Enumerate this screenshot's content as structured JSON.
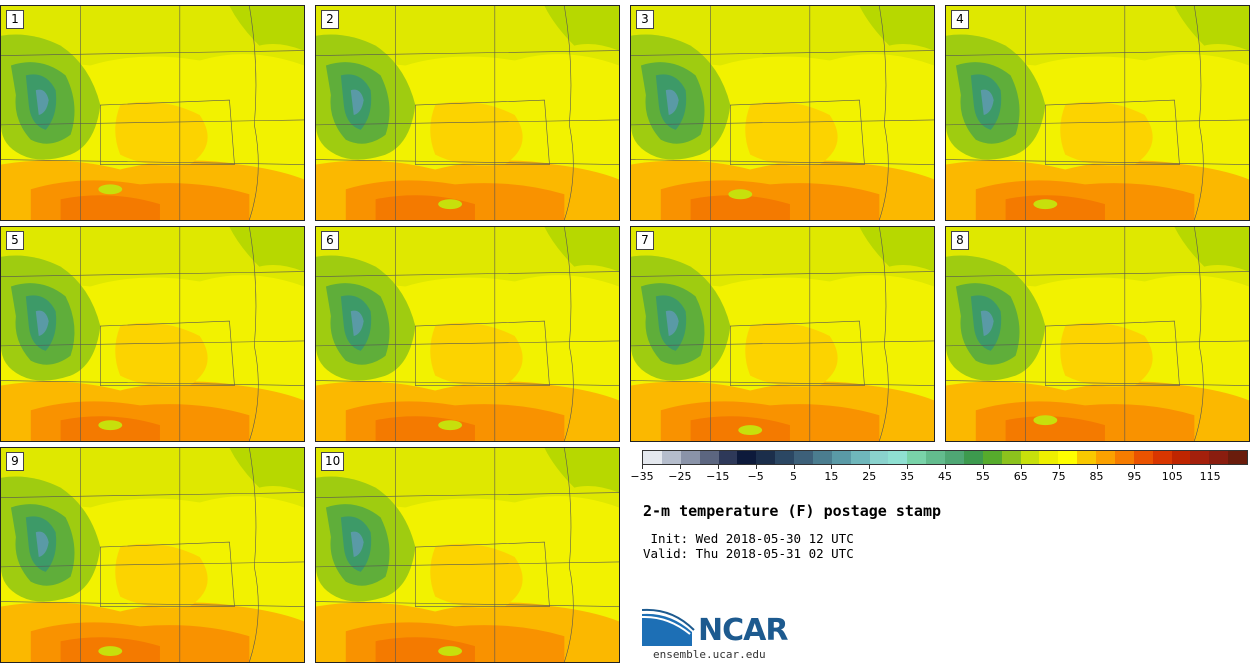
{
  "panels": [
    {
      "number": "1"
    },
    {
      "number": "2"
    },
    {
      "number": "3"
    },
    {
      "number": "4"
    },
    {
      "number": "5"
    },
    {
      "number": "6"
    },
    {
      "number": "7"
    },
    {
      "number": "8"
    },
    {
      "number": "9"
    },
    {
      "number": "10"
    }
  ],
  "colorbar": {
    "units": "F",
    "range": [
      -35,
      125
    ],
    "step": 5,
    "tick_labels": [
      "−35",
      "−25",
      "−15",
      "−5",
      "5",
      "15",
      "25",
      "35",
      "45",
      "55",
      "65",
      "75",
      "85",
      "95",
      "105",
      "115"
    ],
    "tick_values": [
      -35,
      -25,
      -15,
      -5,
      5,
      15,
      25,
      35,
      45,
      55,
      65,
      75,
      85,
      95,
      105,
      115
    ],
    "colors": [
      "#e4e8ee",
      "#b5bdcc",
      "#8a93a8",
      "#5c6680",
      "#2e3959",
      "#0d1a3b",
      "#1b2e4b",
      "#2b4763",
      "#3d6079",
      "#4b7d8f",
      "#5a9aa6",
      "#6fb7bb",
      "#8ad2cd",
      "#8fe0d2",
      "#79d3a9",
      "#63bc8e",
      "#4fa774",
      "#3d9a4e",
      "#56ab2c",
      "#8cc21d",
      "#c7e00c",
      "#eef000",
      "#ffff00",
      "#f9c800",
      "#fba100",
      "#f67c00",
      "#ea5300",
      "#d83600",
      "#bf2500",
      "#a4200c",
      "#8a1d0f",
      "#6a1c0c"
    ]
  },
  "title": "2-m temperature (F) postage stamp",
  "init_line": " Init: Wed 2018-05-30 12 UTC",
  "valid_line": "Valid: Thu 2018-05-31 02 UTC",
  "logo": {
    "name": "NCAR",
    "url": "ensemble.ucar.edu"
  }
}
